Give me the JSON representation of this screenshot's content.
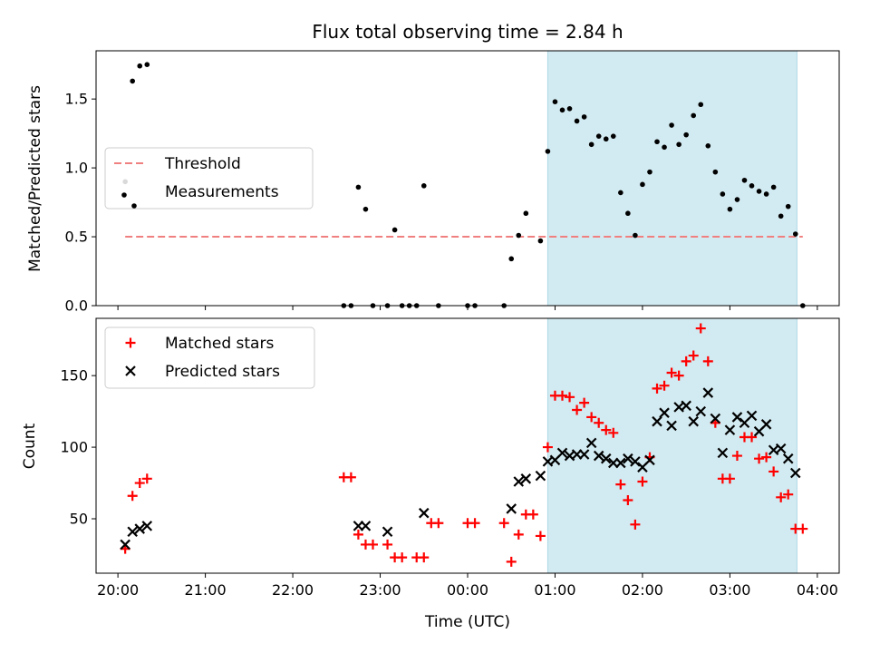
{
  "chart_data": [
    {
      "type": "scatter",
      "title": "Flux total observing time = 2.84 h",
      "ylabel": "Matched/Predicted stars",
      "xlabel": "",
      "ylim": [
        0,
        1.85
      ],
      "yticks": [
        "0.0",
        "0.5",
        "1.0",
        "1.5"
      ],
      "highlight_span": [
        "00:55",
        "03:46"
      ],
      "highlight_color": "#add8e6",
      "legend": {
        "placement": "center-left",
        "entries": [
          "Threshold",
          "Measurements"
        ]
      },
      "threshold": {
        "label": "Threshold",
        "value": 0.5,
        "x_start": "20:05",
        "x_end": "03:50",
        "color": "#f08080",
        "style": "dashed"
      },
      "series": [
        {
          "name": "Measurements",
          "color": "#000000",
          "marker": "dot",
          "points": [
            [
              "20:05",
              0.9
            ],
            [
              "20:10",
              1.63
            ],
            [
              "20:15",
              1.74
            ],
            [
              "20:20",
              1.75
            ],
            [
              "22:35",
              0.0
            ],
            [
              "22:40",
              0.0
            ],
            [
              "22:45",
              0.86
            ],
            [
              "22:50",
              0.7
            ],
            [
              "22:55",
              0.0
            ],
            [
              "23:05",
              0.0
            ],
            [
              "23:10",
              0.55
            ],
            [
              "23:15",
              0.0
            ],
            [
              "23:20",
              0.0
            ],
            [
              "23:25",
              0.0
            ],
            [
              "23:30",
              0.87
            ],
            [
              "23:40",
              0.0
            ],
            [
              "00:00",
              0.0
            ],
            [
              "00:05",
              0.0
            ],
            [
              "00:25",
              0.0
            ],
            [
              "00:30",
              0.34
            ],
            [
              "00:35",
              0.51
            ],
            [
              "00:40",
              0.67
            ],
            [
              "00:50",
              0.47
            ],
            [
              "00:55",
              1.12
            ],
            [
              "01:00",
              1.48
            ],
            [
              "01:05",
              1.42
            ],
            [
              "01:10",
              1.43
            ],
            [
              "01:15",
              1.34
            ],
            [
              "01:20",
              1.37
            ],
            [
              "01:25",
              1.17
            ],
            [
              "01:30",
              1.23
            ],
            [
              "01:35",
              1.21
            ],
            [
              "01:40",
              1.23
            ],
            [
              "01:45",
              0.82
            ],
            [
              "01:50",
              0.67
            ],
            [
              "01:55",
              0.51
            ],
            [
              "02:00",
              0.88
            ],
            [
              "02:05",
              0.97
            ],
            [
              "02:10",
              1.19
            ],
            [
              "02:15",
              1.15
            ],
            [
              "02:20",
              1.31
            ],
            [
              "02:25",
              1.17
            ],
            [
              "02:30",
              1.24
            ],
            [
              "02:35",
              1.38
            ],
            [
              "02:40",
              1.46
            ],
            [
              "02:45",
              1.16
            ],
            [
              "02:50",
              0.97
            ],
            [
              "02:55",
              0.81
            ],
            [
              "03:00",
              0.7
            ],
            [
              "03:05",
              0.77
            ],
            [
              "03:10",
              0.91
            ],
            [
              "03:15",
              0.87
            ],
            [
              "03:20",
              0.83
            ],
            [
              "03:25",
              0.81
            ],
            [
              "03:30",
              0.86
            ],
            [
              "03:35",
              0.65
            ],
            [
              "03:40",
              0.72
            ],
            [
              "03:45",
              0.52
            ],
            [
              "03:50",
              0.0
            ]
          ]
        }
      ]
    },
    {
      "type": "scatter",
      "title": "",
      "ylabel": "Count",
      "xlabel": "Time (UTC)",
      "ylim": [
        12,
        190
      ],
      "yticks": [
        "50",
        "100",
        "150"
      ],
      "xticks": [
        "20:00",
        "21:00",
        "22:00",
        "23:00",
        "00:00",
        "01:00",
        "02:00",
        "03:00",
        "04:00"
      ],
      "highlight_span": [
        "00:55",
        "03:46"
      ],
      "highlight_color": "#add8e6",
      "legend": {
        "placement": "top-left",
        "entries": [
          "Matched stars",
          "Predicted stars"
        ]
      },
      "series": [
        {
          "name": "Matched stars",
          "color": "#ff0000",
          "marker": "plus",
          "points": [
            [
              "20:05",
              29
            ],
            [
              "20:10",
              66
            ],
            [
              "20:15",
              75
            ],
            [
              "20:20",
              78
            ],
            [
              "22:35",
              79
            ],
            [
              "22:40",
              79
            ],
            [
              "22:45",
              39
            ],
            [
              "22:50",
              32
            ],
            [
              "22:55",
              32
            ],
            [
              "23:05",
              32
            ],
            [
              "23:10",
              23
            ],
            [
              "23:15",
              23
            ],
            [
              "23:25",
              23
            ],
            [
              "23:30",
              23
            ],
            [
              "23:35",
              47
            ],
            [
              "23:40",
              47
            ],
            [
              "00:00",
              47
            ],
            [
              "00:05",
              47
            ],
            [
              "00:25",
              47
            ],
            [
              "00:30",
              20
            ],
            [
              "00:35",
              39
            ],
            [
              "00:40",
              53
            ],
            [
              "00:45",
              53
            ],
            [
              "00:50",
              38
            ],
            [
              "00:55",
              100
            ],
            [
              "01:00",
              136
            ],
            [
              "01:05",
              136
            ],
            [
              "01:10",
              135
            ],
            [
              "01:15",
              126
            ],
            [
              "01:20",
              131
            ],
            [
              "01:25",
              121
            ],
            [
              "01:30",
              117
            ],
            [
              "01:35",
              112
            ],
            [
              "01:40",
              110
            ],
            [
              "01:45",
              74
            ],
            [
              "01:50",
              63
            ],
            [
              "01:55",
              46
            ],
            [
              "02:00",
              76
            ],
            [
              "02:05",
              93
            ],
            [
              "02:10",
              141
            ],
            [
              "02:15",
              143
            ],
            [
              "02:20",
              152
            ],
            [
              "02:25",
              150
            ],
            [
              "02:30",
              160
            ],
            [
              "02:35",
              164
            ],
            [
              "02:40",
              183
            ],
            [
              "02:45",
              160
            ],
            [
              "02:50",
              117
            ],
            [
              "02:55",
              78
            ],
            [
              "03:00",
              78
            ],
            [
              "03:05",
              94
            ],
            [
              "03:10",
              107
            ],
            [
              "03:15",
              107
            ],
            [
              "03:20",
              92
            ],
            [
              "03:25",
              93
            ],
            [
              "03:30",
              83
            ],
            [
              "03:35",
              65
            ],
            [
              "03:40",
              67
            ],
            [
              "03:45",
              43
            ],
            [
              "03:50",
              43
            ]
          ]
        },
        {
          "name": "Predicted stars",
          "color": "#000000",
          "marker": "x",
          "points": [
            [
              "20:05",
              32
            ],
            [
              "20:10",
              41
            ],
            [
              "20:15",
              43
            ],
            [
              "20:20",
              45
            ],
            [
              "22:45",
              45
            ],
            [
              "22:50",
              45
            ],
            [
              "23:05",
              41
            ],
            [
              "23:30",
              54
            ],
            [
              "00:30",
              57
            ],
            [
              "00:35",
              76
            ],
            [
              "00:40",
              78
            ],
            [
              "00:50",
              80
            ],
            [
              "00:55",
              90
            ],
            [
              "01:00",
              91
            ],
            [
              "01:05",
              96
            ],
            [
              "01:10",
              94
            ],
            [
              "01:15",
              95
            ],
            [
              "01:20",
              95
            ],
            [
              "01:25",
              103
            ],
            [
              "01:30",
              94
            ],
            [
              "01:35",
              92
            ],
            [
              "01:40",
              89
            ],
            [
              "01:45",
              89
            ],
            [
              "01:50",
              92
            ],
            [
              "01:55",
              90
            ],
            [
              "02:00",
              86
            ],
            [
              "02:05",
              91
            ],
            [
              "02:10",
              118
            ],
            [
              "02:15",
              124
            ],
            [
              "02:20",
              115
            ],
            [
              "02:25",
              128
            ],
            [
              "02:30",
              129
            ],
            [
              "02:35",
              118
            ],
            [
              "02:40",
              125
            ],
            [
              "02:45",
              138
            ],
            [
              "02:50",
              120
            ],
            [
              "02:55",
              96
            ],
            [
              "03:00",
              112
            ],
            [
              "03:05",
              121
            ],
            [
              "03:10",
              117
            ],
            [
              "03:15",
              122
            ],
            [
              "03:20",
              111
            ],
            [
              "03:25",
              116
            ],
            [
              "03:30",
              98
            ],
            [
              "03:35",
              99
            ],
            [
              "03:40",
              92
            ],
            [
              "03:45",
              82
            ]
          ]
        }
      ]
    }
  ]
}
